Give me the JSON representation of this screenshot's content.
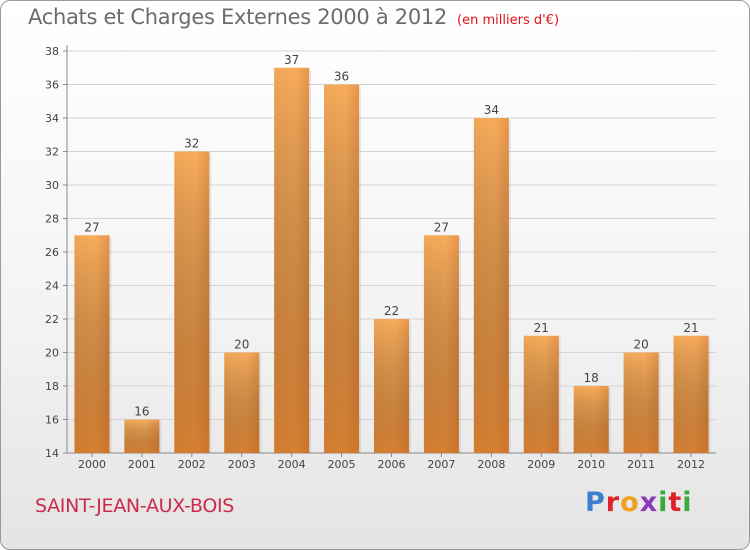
{
  "header": {
    "title": "Achats et Charges Externes 2000 à 2012",
    "unit_note": "(en milliers d'€)"
  },
  "footer": {
    "location": "SAINT-JEAN-AUX-BOIS",
    "brand": "Proxiti",
    "brand_colors": [
      "#3a7fd0",
      "#e0202a",
      "#f0a020",
      "#8a3ab8",
      "#3aa83a",
      "#e0202a",
      "#3aa83a"
    ]
  },
  "chart_data": {
    "type": "bar",
    "categories": [
      "2000",
      "2001",
      "2002",
      "2003",
      "2004",
      "2005",
      "2006",
      "2007",
      "2008",
      "2009",
      "2010",
      "2011",
      "2012"
    ],
    "values": [
      27,
      16,
      32,
      20,
      37,
      36,
      22,
      27,
      34,
      21,
      18,
      20,
      21
    ],
    "title": "Achats et Charges Externes 2000 à 2012",
    "subtitle": "(en milliers d'€)",
    "ylim": [
      14,
      38
    ],
    "yticks": [
      14,
      16,
      18,
      20,
      22,
      24,
      26,
      28,
      30,
      32,
      34,
      36,
      38
    ],
    "grid": true,
    "data_labels": true,
    "bar_color": "#f0a04a",
    "bar_color_dark": "#c8681a"
  }
}
